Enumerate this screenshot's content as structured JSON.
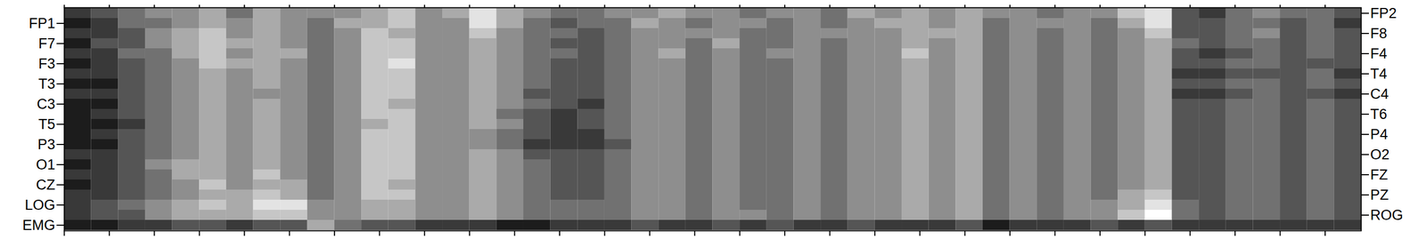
{
  "chart_data": {
    "type": "heatmap",
    "categories": [
      "FP2",
      "FP1",
      "F8",
      "F7",
      "F4",
      "F3",
      "T4",
      "T3",
      "C4",
      "C3",
      "T6",
      "T5",
      "P4",
      "P3",
      "O2",
      "O1",
      "FZ",
      "CZ",
      "PZ",
      "LOG",
      "ROG",
      "EMG"
    ],
    "x": [
      0,
      0.6,
      1.2,
      1.8,
      2.4,
      3,
      3.6,
      4.2,
      4.8,
      5.4,
      6,
      6.6,
      7.2,
      7.8,
      8.4,
      9,
      9.6,
      10.2,
      10.8,
      11.4,
      12,
      12.6,
      13.2,
      13.8,
      14.4,
      15,
      15.6,
      16.2,
      16.8,
      17.4,
      18,
      18.6,
      19.2,
      19.8,
      20.4,
      21,
      21.6,
      22.2,
      22.8,
      23.4,
      24,
      24.6,
      25.2,
      25.8,
      26.4,
      27,
      27.6,
      28.2
    ],
    "xlim": [
      0,
      28.8
    ],
    "xticks": [
      0,
      1,
      2,
      3,
      4,
      5,
      6,
      7,
      8,
      9,
      10,
      11,
      12,
      13,
      14,
      15,
      16,
      17,
      18,
      19,
      20,
      21,
      22,
      23,
      24,
      25,
      26,
      27,
      28
    ],
    "tick_labels": "y",
    "zlim": [
      0,
      9
    ],
    "cells": [
      [
        2,
        3,
        4,
        5,
        5,
        6,
        4,
        6,
        5,
        5,
        5,
        6,
        7,
        5,
        6,
        8,
        6,
        5,
        4,
        4,
        5,
        5,
        6,
        5,
        5,
        4,
        5,
        5,
        4,
        6,
        5,
        6,
        5,
        6,
        5,
        5,
        4,
        5,
        5,
        7,
        8,
        3,
        2,
        4,
        5,
        4,
        4,
        3
      ],
      [
        1,
        2,
        4,
        4,
        5,
        6,
        5,
        6,
        5,
        4,
        6,
        6,
        7,
        5,
        5,
        8,
        6,
        4,
        3,
        4,
        4,
        6,
        5,
        4,
        5,
        5,
        4,
        5,
        4,
        5,
        6,
        6,
        5,
        6,
        4,
        5,
        5,
        5,
        4,
        6,
        8,
        3,
        3,
        4,
        4,
        3,
        4,
        2
      ],
      [
        2,
        2,
        3,
        5,
        6,
        7,
        5,
        6,
        5,
        4,
        5,
        7,
        6,
        5,
        5,
        7,
        5,
        4,
        4,
        3,
        4,
        5,
        5,
        5,
        5,
        4,
        4,
        5,
        5,
        5,
        5,
        6,
        6,
        6,
        4,
        5,
        4,
        5,
        4,
        5,
        7,
        3,
        3,
        4,
        5,
        3,
        4,
        3
      ],
      [
        1,
        3,
        3,
        5,
        6,
        7,
        6,
        6,
        5,
        4,
        5,
        7,
        7,
        5,
        5,
        6,
        5,
        4,
        3,
        3,
        4,
        5,
        5,
        4,
        6,
        4,
        4,
        5,
        4,
        5,
        5,
        6,
        5,
        6,
        4,
        5,
        4,
        5,
        4,
        5,
        6,
        4,
        3,
        4,
        4,
        3,
        4,
        3
      ],
      [
        2,
        2,
        4,
        4,
        6,
        7,
        5,
        6,
        6,
        4,
        5,
        7,
        7,
        5,
        5,
        6,
        5,
        4,
        4,
        3,
        4,
        5,
        6,
        4,
        5,
        4,
        5,
        5,
        4,
        5,
        5,
        7,
        5,
        6,
        4,
        5,
        4,
        5,
        4,
        5,
        6,
        3,
        2,
        3,
        4,
        3,
        4,
        3
      ],
      [
        1,
        2,
        3,
        4,
        5,
        7,
        6,
        6,
        5,
        4,
        5,
        7,
        8,
        5,
        5,
        6,
        5,
        4,
        3,
        3,
        4,
        5,
        5,
        4,
        5,
        4,
        4,
        5,
        4,
        5,
        5,
        6,
        5,
        6,
        4,
        5,
        4,
        5,
        4,
        5,
        6,
        3,
        3,
        4,
        4,
        3,
        3,
        3
      ],
      [
        2,
        2,
        3,
        4,
        5,
        6,
        5,
        6,
        5,
        4,
        5,
        7,
        7,
        5,
        5,
        6,
        5,
        4,
        3,
        3,
        4,
        5,
        5,
        4,
        5,
        4,
        4,
        5,
        4,
        5,
        5,
        6,
        5,
        6,
        4,
        5,
        4,
        5,
        4,
        5,
        6,
        2,
        2,
        3,
        3,
        3,
        4,
        2
      ],
      [
        1,
        1,
        3,
        4,
        5,
        6,
        5,
        6,
        5,
        4,
        5,
        7,
        7,
        5,
        5,
        6,
        5,
        4,
        3,
        3,
        4,
        5,
        5,
        4,
        5,
        4,
        4,
        5,
        4,
        5,
        5,
        6,
        5,
        6,
        4,
        5,
        4,
        5,
        4,
        5,
        6,
        3,
        3,
        4,
        4,
        3,
        4,
        3
      ],
      [
        2,
        2,
        3,
        4,
        5,
        6,
        5,
        5,
        5,
        4,
        5,
        7,
        7,
        5,
        5,
        6,
        5,
        3,
        3,
        3,
        4,
        5,
        5,
        4,
        5,
        4,
        4,
        5,
        4,
        5,
        5,
        6,
        5,
        6,
        4,
        5,
        4,
        5,
        4,
        5,
        6,
        2,
        2,
        3,
        4,
        3,
        3,
        2
      ],
      [
        1,
        1,
        3,
        4,
        5,
        6,
        5,
        6,
        5,
        4,
        5,
        7,
        6,
        5,
        5,
        6,
        5,
        4,
        3,
        2,
        4,
        5,
        5,
        4,
        5,
        4,
        4,
        5,
        4,
        5,
        5,
        6,
        5,
        6,
        4,
        5,
        4,
        5,
        4,
        5,
        6,
        3,
        3,
        4,
        4,
        3,
        4,
        3
      ],
      [
        1,
        2,
        3,
        4,
        5,
        6,
        5,
        6,
        5,
        4,
        5,
        7,
        7,
        5,
        5,
        6,
        4,
        3,
        2,
        3,
        4,
        5,
        5,
        4,
        5,
        4,
        4,
        5,
        4,
        5,
        5,
        6,
        5,
        6,
        4,
        5,
        4,
        5,
        4,
        5,
        6,
        3,
        3,
        4,
        4,
        3,
        4,
        3
      ],
      [
        1,
        1,
        2,
        4,
        5,
        6,
        5,
        6,
        5,
        4,
        5,
        6,
        7,
        5,
        5,
        6,
        5,
        3,
        2,
        3,
        4,
        5,
        5,
        4,
        5,
        4,
        4,
        5,
        4,
        5,
        5,
        6,
        5,
        6,
        4,
        5,
        4,
        5,
        4,
        5,
        6,
        3,
        3,
        4,
        4,
        3,
        4,
        3
      ],
      [
        1,
        2,
        3,
        4,
        5,
        6,
        5,
        6,
        5,
        4,
        5,
        7,
        7,
        5,
        5,
        5,
        4,
        3,
        2,
        2,
        4,
        5,
        5,
        4,
        5,
        4,
        4,
        5,
        4,
        5,
        5,
        6,
        5,
        6,
        4,
        5,
        4,
        5,
        4,
        5,
        6,
        3,
        3,
        4,
        4,
        3,
        4,
        3
      ],
      [
        1,
        1,
        3,
        4,
        5,
        6,
        5,
        6,
        5,
        4,
        5,
        7,
        7,
        5,
        5,
        5,
        4,
        2,
        2,
        2,
        3,
        5,
        5,
        4,
        5,
        4,
        4,
        5,
        4,
        5,
        5,
        6,
        5,
        6,
        4,
        5,
        4,
        5,
        4,
        5,
        6,
        3,
        3,
        4,
        4,
        3,
        4,
        3
      ],
      [
        2,
        2,
        3,
        4,
        5,
        6,
        5,
        6,
        5,
        4,
        5,
        7,
        7,
        5,
        5,
        6,
        5,
        3,
        3,
        3,
        4,
        5,
        5,
        4,
        5,
        4,
        4,
        5,
        4,
        5,
        5,
        6,
        5,
        6,
        4,
        5,
        4,
        5,
        4,
        5,
        6,
        3,
        3,
        4,
        4,
        3,
        4,
        3
      ],
      [
        1,
        2,
        3,
        5,
        6,
        6,
        5,
        6,
        5,
        4,
        5,
        7,
        7,
        5,
        5,
        6,
        5,
        4,
        3,
        3,
        4,
        5,
        5,
        4,
        5,
        4,
        4,
        5,
        4,
        5,
        5,
        6,
        5,
        6,
        4,
        5,
        4,
        5,
        4,
        5,
        6,
        3,
        3,
        4,
        4,
        3,
        4,
        3
      ],
      [
        2,
        2,
        3,
        4,
        6,
        6,
        5,
        7,
        5,
        4,
        5,
        7,
        7,
        5,
        5,
        6,
        5,
        4,
        3,
        3,
        4,
        5,
        5,
        4,
        5,
        4,
        4,
        5,
        4,
        5,
        5,
        6,
        5,
        6,
        4,
        5,
        4,
        5,
        4,
        5,
        6,
        3,
        3,
        4,
        4,
        3,
        4,
        3
      ],
      [
        1,
        2,
        3,
        4,
        5,
        7,
        5,
        6,
        6,
        4,
        5,
        7,
        6,
        5,
        5,
        6,
        5,
        4,
        3,
        3,
        4,
        5,
        5,
        4,
        5,
        4,
        4,
        5,
        4,
        5,
        5,
        6,
        5,
        6,
        4,
        5,
        4,
        5,
        4,
        5,
        6,
        3,
        3,
        4,
        4,
        3,
        4,
        3
      ],
      [
        2,
        2,
        3,
        4,
        5,
        6,
        6,
        7,
        6,
        4,
        5,
        7,
        7,
        5,
        5,
        6,
        5,
        4,
        3,
        3,
        4,
        5,
        5,
        4,
        5,
        4,
        4,
        5,
        4,
        5,
        5,
        6,
        5,
        6,
        4,
        5,
        4,
        5,
        4,
        6,
        7,
        3,
        3,
        4,
        4,
        3,
        4,
        3
      ],
      [
        2,
        3,
        4,
        5,
        6,
        7,
        6,
        8,
        8,
        5,
        5,
        6,
        6,
        5,
        5,
        6,
        5,
        4,
        4,
        4,
        4,
        5,
        5,
        4,
        5,
        4,
        4,
        5,
        4,
        5,
        5,
        6,
        5,
        6,
        4,
        5,
        4,
        5,
        5,
        6,
        8,
        4,
        3,
        4,
        4,
        3,
        4,
        3
      ],
      [
        2,
        3,
        3,
        5,
        6,
        6,
        6,
        7,
        7,
        5,
        5,
        6,
        6,
        5,
        5,
        6,
        5,
        4,
        4,
        4,
        4,
        5,
        5,
        4,
        5,
        5,
        4,
        5,
        4,
        5,
        5,
        6,
        5,
        6,
        4,
        5,
        4,
        5,
        5,
        7,
        9,
        4,
        3,
        4,
        4,
        3,
        4,
        3
      ],
      [
        1,
        1,
        2,
        2,
        3,
        3,
        2,
        3,
        3,
        6,
        4,
        3,
        3,
        2,
        2,
        2,
        1,
        1,
        2,
        2,
        2,
        3,
        2,
        2,
        3,
        2,
        3,
        2,
        2,
        3,
        2,
        2,
        2,
        3,
        1,
        2,
        2,
        2,
        3,
        2,
        3,
        2,
        2,
        2,
        2,
        2,
        2,
        2
      ]
    ]
  }
}
